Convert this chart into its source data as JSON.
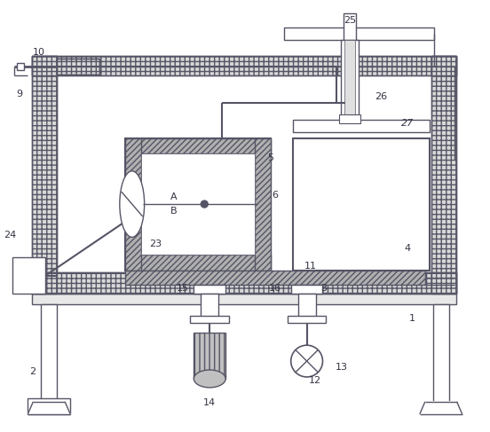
{
  "bg_color": "#ffffff",
  "line_color": "#555566",
  "label_color": "#333344",
  "fig_width": 5.52,
  "fig_height": 4.87,
  "dpi": 100,
  "hatch_fill": "#cccccc",
  "hatch_dense": "#aaaaaa"
}
